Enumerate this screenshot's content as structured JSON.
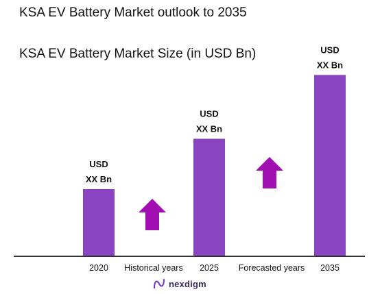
{
  "title": "KSA EV Battery Market outlook to 2035",
  "subtitle": "KSA EV Battery Market Size (in USD Bn)",
  "colors": {
    "bar": "#8a44c2",
    "arrow": "#a10fb3",
    "axis": "#333333"
  },
  "chart_data": {
    "type": "bar",
    "categories": [
      "2020",
      "2025",
      "2035"
    ],
    "values": [
      1,
      1.75,
      2.7
    ],
    "value_labels": [
      [
        "USD",
        "XX Bn"
      ],
      [
        "USD",
        "XX Bn"
      ],
      [
        "USD",
        "XX Bn"
      ]
    ],
    "period_labels": [
      "Historical years",
      "Forecasted years"
    ],
    "ylim": [
      0,
      3.0
    ],
    "grid": false,
    "legend": "none"
  },
  "logo": {
    "text": "nexdigm"
  }
}
